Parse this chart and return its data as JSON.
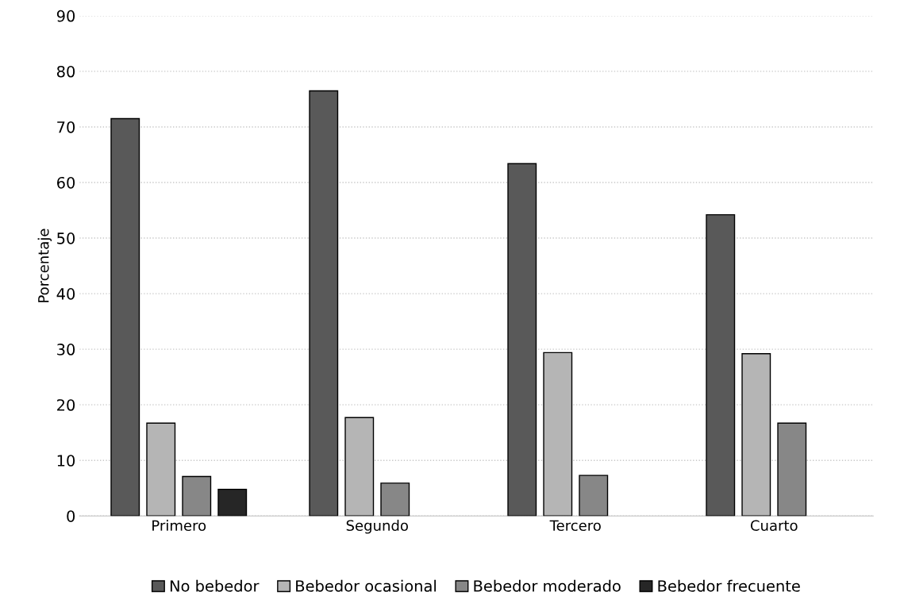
{
  "chart_data": {
    "type": "bar",
    "ylabel": "Porcentaje",
    "categories": [
      "Primero",
      "Segundo",
      "Tercero",
      "Cuarto"
    ],
    "series": [
      {
        "name": "No bebedor",
        "color": "#595959",
        "values": [
          71.5,
          76.5,
          63.4,
          54.2
        ]
      },
      {
        "name": "Bebedor ocasional",
        "color": "#b5b5b5",
        "values": [
          16.7,
          17.7,
          29.4,
          29.2
        ]
      },
      {
        "name": "Bebedor moderado",
        "color": "#878787",
        "values": [
          7.1,
          5.9,
          7.3,
          16.7
        ]
      },
      {
        "name": "Bebedor frecuente",
        "color": "#262626",
        "values": [
          4.8,
          null,
          null,
          null
        ]
      }
    ],
    "ylim": [
      0,
      90
    ],
    "yticks": [
      0,
      10,
      20,
      30,
      40,
      50,
      60,
      70,
      80,
      90
    ],
    "grid": "y",
    "legend": "bottom"
  }
}
